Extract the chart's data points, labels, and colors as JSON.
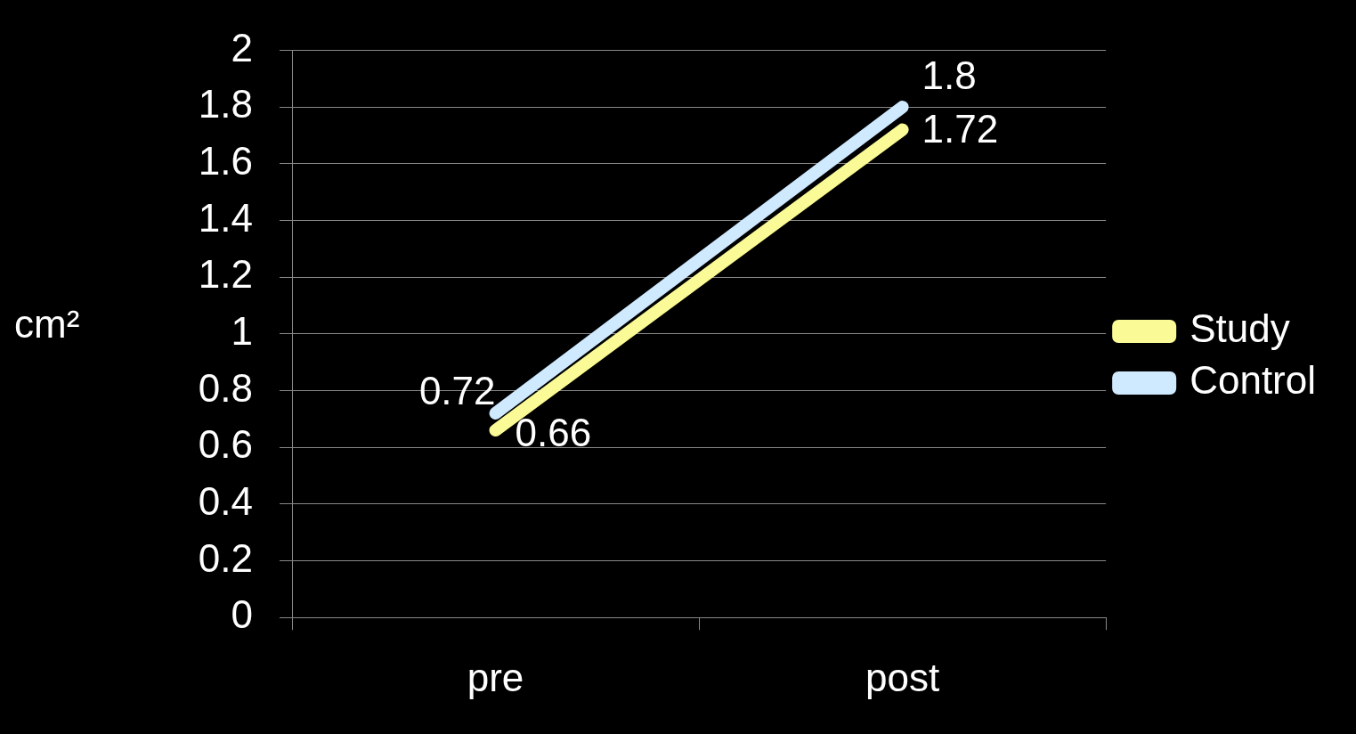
{
  "chart_data": {
    "type": "line",
    "ylabel": "cm²",
    "categories": [
      "pre",
      "post"
    ],
    "series": [
      {
        "name": "Study",
        "color": "#fafa96",
        "values": [
          0.66,
          1.72
        ]
      },
      {
        "name": "Control",
        "color": "#cfe9ff",
        "values": [
          0.72,
          1.8
        ]
      }
    ],
    "ylim": [
      0,
      2
    ],
    "yticks": [
      0,
      0.2,
      0.4,
      0.6,
      0.8,
      1,
      1.2,
      1.4,
      1.6,
      1.8,
      2
    ],
    "grid": "y",
    "legend": "right",
    "marker": "none",
    "data_labels": true
  }
}
